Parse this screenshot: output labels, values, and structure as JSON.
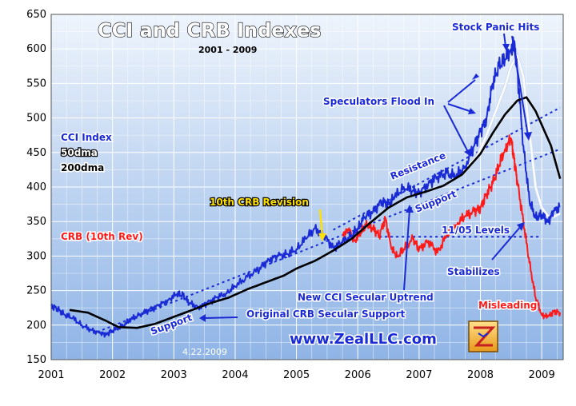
{
  "chart_data": {
    "type": "line",
    "title": "CCI and CRB Indexes",
    "subtitle": "2001 - 2009",
    "date_stamp": "4.22.2009",
    "source": "www.ZealLLC.com",
    "ylim": [
      150,
      650
    ],
    "xlim": [
      2001,
      2009.35
    ],
    "y_ticks": [
      "150",
      "200",
      "250",
      "300",
      "350",
      "400",
      "450",
      "500",
      "550",
      "600",
      "650"
    ],
    "x_ticks": [
      "2001",
      "2002",
      "2003",
      "2004",
      "2005",
      "2006",
      "2007",
      "2008",
      "2009"
    ],
    "legend": [
      {
        "label": "CCI Index",
        "color": "#1a2bd6"
      },
      {
        "label": "50dma",
        "color": "#ffffff"
      },
      {
        "label": "200dma",
        "color": "#000000"
      },
      {
        "label": "CRB (10th Rev)",
        "color": "#ff1a1a"
      }
    ],
    "series": [
      {
        "name": "CCI Index",
        "color": "#1a2bd6",
        "x": [
          2001.0,
          2001.1,
          2001.2,
          2001.35,
          2001.5,
          2001.65,
          2001.8,
          2001.9,
          2002.0,
          2002.15,
          2002.3,
          2002.45,
          2002.6,
          2002.75,
          2002.9,
          2003.05,
          2003.15,
          2003.25,
          2003.4,
          2003.55,
          2003.7,
          2003.85,
          2004.0,
          2004.2,
          2004.4,
          2004.55,
          2004.7,
          2004.85,
          2005.0,
          2005.15,
          2005.3,
          2005.45,
          2005.6,
          2005.75,
          2005.9,
          2006.0,
          2006.1,
          2006.25,
          2006.4,
          2006.5,
          2006.6,
          2006.75,
          2006.9,
          2007.0,
          2007.15,
          2007.3,
          2007.45,
          2007.6,
          2007.75,
          2007.9,
          2008.0,
          2008.1,
          2008.2,
          2008.3,
          2008.4,
          2008.5,
          2008.55,
          2008.6,
          2008.7,
          2008.8,
          2008.9,
          2009.0,
          2009.1,
          2009.2,
          2009.3
        ],
        "values": [
          228,
          224,
          216,
          210,
          200,
          193,
          188,
          187,
          192,
          198,
          208,
          216,
          222,
          228,
          236,
          245,
          243,
          232,
          226,
          232,
          240,
          246,
          256,
          270,
          282,
          295,
          300,
          303,
          310,
          325,
          340,
          330,
          312,
          320,
          330,
          340,
          355,
          365,
          380,
          375,
          385,
          400,
          395,
          390,
          405,
          415,
          420,
          415,
          430,
          460,
          480,
          500,
          550,
          575,
          585,
          600,
          610,
          570,
          460,
          380,
          355,
          360,
          350,
          365,
          372
        ]
      },
      {
        "name": "50dma",
        "color": "#ffffff",
        "x": [
          2007.8,
          2007.95,
          2008.1,
          2008.25,
          2008.4,
          2008.5,
          2008.6,
          2008.7,
          2008.8,
          2008.9,
          2009.0,
          2009.1,
          2009.2,
          2009.3
        ],
        "values": [
          430,
          445,
          475,
          510,
          545,
          575,
          590,
          560,
          480,
          400,
          370,
          358,
          357,
          362
        ]
      },
      {
        "name": "200dma",
        "color": "#000000",
        "x": [
          2001.3,
          2001.6,
          2001.9,
          2002.1,
          2002.4,
          2002.7,
          2003.0,
          2003.3,
          2003.6,
          2003.9,
          2004.2,
          2004.5,
          2004.8,
          2005.0,
          2005.3,
          2005.6,
          2005.9,
          2006.2,
          2006.5,
          2006.8,
          2007.1,
          2007.4,
          2007.7,
          2008.0,
          2008.2,
          2008.4,
          2008.6,
          2008.75,
          2008.9,
          2009.0,
          2009.15,
          2009.3
        ],
        "values": [
          222,
          218,
          206,
          197,
          196,
          202,
          212,
          222,
          232,
          240,
          252,
          262,
          272,
          282,
          293,
          308,
          325,
          348,
          370,
          385,
          393,
          402,
          418,
          448,
          478,
          505,
          525,
          530,
          510,
          490,
          460,
          412
        ]
      },
      {
        "name": "CRB (10th Rev)",
        "color": "#ff1a1a",
        "x": [
          2005.75,
          2005.85,
          2005.95,
          2006.05,
          2006.15,
          2006.25,
          2006.35,
          2006.45,
          2006.55,
          2006.65,
          2006.75,
          2006.9,
          2007.0,
          2007.15,
          2007.3,
          2007.45,
          2007.6,
          2007.75,
          2007.9,
          2008.0,
          2008.1,
          2008.2,
          2008.3,
          2008.4,
          2008.5,
          2008.55,
          2008.6,
          2008.7,
          2008.8,
          2008.9,
          2009.0,
          2009.1,
          2009.2,
          2009.3
        ],
        "values": [
          330,
          338,
          322,
          335,
          345,
          340,
          330,
          355,
          310,
          300,
          310,
          325,
          310,
          322,
          305,
          330,
          345,
          358,
          365,
          370,
          390,
          405,
          430,
          455,
          470,
          440,
          410,
          350,
          290,
          240,
          215,
          212,
          220,
          218
        ]
      }
    ],
    "trendlines": [
      {
        "name": "CCI support",
        "color": "#1a2bd6",
        "dashed": true,
        "x": [
          2001.75,
          2009.3
        ],
        "values": [
          190,
          455
        ]
      },
      {
        "name": "CCI resistance",
        "color": "#1a2bd6",
        "dashed": true,
        "x": [
          2005.6,
          2009.3
        ],
        "values": [
          338,
          515
        ]
      },
      {
        "name": "11/05 levels",
        "color": "#1a2bd6",
        "dashed": true,
        "x": [
          2006.35,
          2009.0
        ],
        "values": [
          328,
          328
        ]
      }
    ],
    "annotations": {
      "stock_panic": "Stock Panic Hits",
      "speculators": "Speculators Flood In",
      "resistance": "Resistance",
      "support": "Support",
      "revision": "10th CRB Revision",
      "levels": "11/05 Levels",
      "stabilizes": "Stabilizes",
      "new_uptrend": "New CCI Secular Uptrend",
      "misleading": "Misleading",
      "original_support": "Original CRB Secular Support",
      "support_left": "Support"
    }
  }
}
